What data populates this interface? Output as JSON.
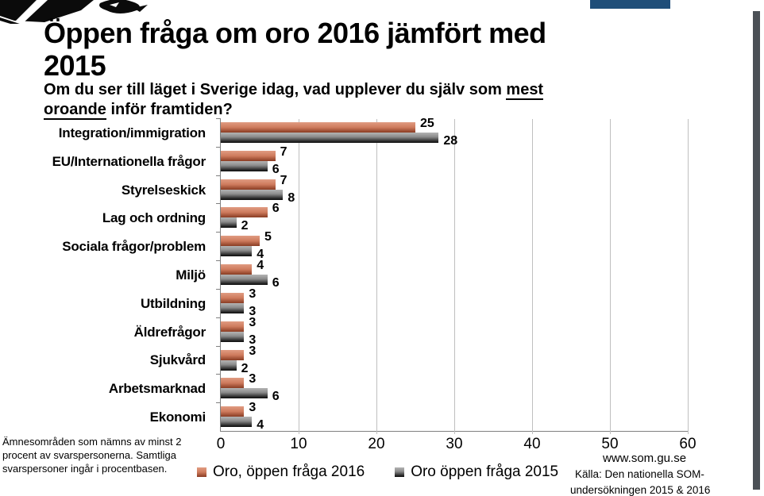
{
  "header": {
    "title_line1": "Öppen fråga om oro 2016 jämfört med",
    "title_line2": "2015",
    "subtitle_pre": "Om du ser till läget i Sverige idag, vad upplever du själv som ",
    "subtitle_underline_1": "mest",
    "subtitle_underline_2": "oroande",
    "subtitle_post": " inför framtiden?"
  },
  "chart_data": {
    "type": "bar",
    "orientation": "horizontal",
    "title": "Öppen fråga om oro 2016 jämfört med 2015",
    "categories": [
      "Integration/immigration",
      "EU/Internationella frågor",
      "Styrelseskick",
      "Lag och ordning",
      "Sociala frågor/problem",
      "Miljö",
      "Utbildning",
      "Äldrefrågor",
      "Sjukvård",
      "Arbetsmarknad",
      "Ekonomi"
    ],
    "series": [
      {
        "name": "Oro, öppen fråga 2016",
        "color": "#CE7B5D",
        "values": [
          25,
          7,
          7,
          6,
          5,
          4,
          3,
          3,
          3,
          3,
          3
        ]
      },
      {
        "name": "Oro öppen fråga 2015",
        "color": "#8C8C8C",
        "values": [
          28,
          6,
          8,
          2,
          4,
          6,
          3,
          3,
          2,
          6,
          4
        ]
      }
    ],
    "xlim": [
      0,
      60
    ],
    "xticks": [
      0,
      10,
      20,
      30,
      40,
      50,
      60
    ],
    "grid": "vertical",
    "value_labels": true,
    "legend_position": "bottom"
  },
  "footer": {
    "note": "Ämnesområden som nämns av minst 2 procent av svarspersonerna. Samtliga svarspersoner ingår i procentbasen.",
    "website": "www.som.gu.se",
    "source_line1": "Källa: Den nationella SOM-",
    "source_line2": "undersökningen 2015 & 2016"
  },
  "colors": {
    "bar2016_top": "#E09C82",
    "bar2016_mid": "#CE7B5D",
    "bar2016_bottom": "#8E4027",
    "bar2015_top": "#B4B4B4",
    "bar2015_mid": "#8C8C8C",
    "bar2015_bottom": "#141414",
    "gridline": "#BFBFBF",
    "axis": "#808080",
    "accent_blue": "#1F4E79",
    "scrollbar": "#4B5056",
    "text": "#000000"
  }
}
